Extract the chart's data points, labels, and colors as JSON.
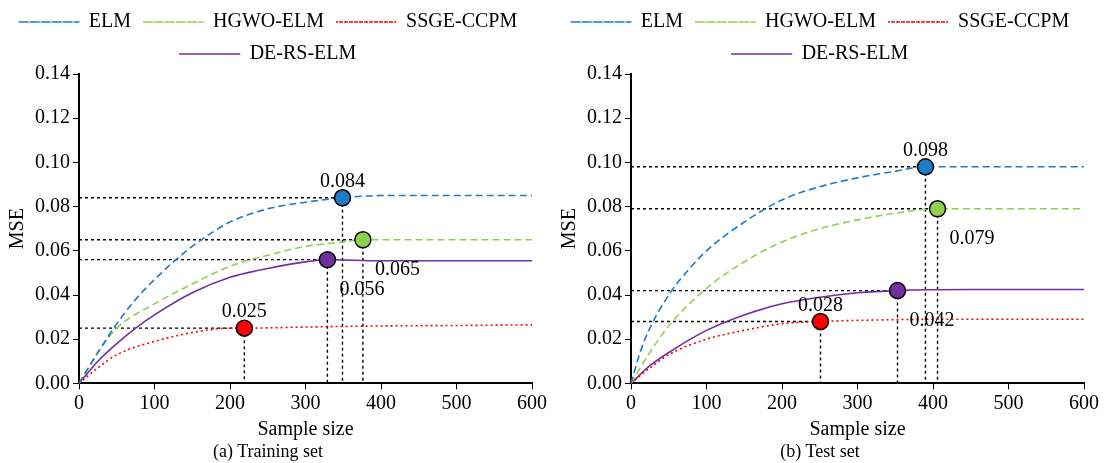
{
  "chart_data": [
    {
      "type": "line",
      "subtitle": "(a) Training set",
      "xlabel": "Sample size",
      "ylabel": "MSE",
      "xlim": [
        0,
        600
      ],
      "xticks": [
        0,
        100,
        200,
        300,
        400,
        500,
        600
      ],
      "ylim": [
        0,
        0.14
      ],
      "yticks": [
        {
          "value": 0,
          "label": "0.00"
        },
        {
          "value": 0.02,
          "label": "0.02"
        },
        {
          "value": 0.04,
          "label": "0.04"
        },
        {
          "value": 0.06,
          "label": "0.06"
        },
        {
          "value": 0.08,
          "label": "0.08"
        },
        {
          "value": 0.1,
          "label": "0.10"
        },
        {
          "value": 0.12,
          "label": "0.12"
        },
        {
          "value": 0.14,
          "label": "0.14"
        }
      ],
      "grid": false,
      "legend": "top",
      "marker": "none",
      "series": [
        {
          "name": "ELM",
          "color": "#1f7ac8",
          "line_style": "dashed",
          "x": [
            0,
            25,
            50,
            75,
            100,
            125,
            150,
            175,
            200,
            250,
            300,
            349,
            400,
            500,
            600
          ],
          "values": [
            0,
            0.014,
            0.027,
            0.038,
            0.047,
            0.055,
            0.062,
            0.068,
            0.073,
            0.079,
            0.082,
            0.084,
            0.085,
            0.085,
            0.085
          ]
        },
        {
          "name": "HGWO-ELM",
          "color": "#8fd14f",
          "line_style": "dashed",
          "x": [
            0,
            25,
            50,
            100,
            150,
            200,
            250,
            300,
            350,
            376,
            450,
            600
          ],
          "values": [
            0,
            0.014,
            0.025,
            0.036,
            0.045,
            0.053,
            0.058,
            0.062,
            0.064,
            0.065,
            0.065,
            0.065
          ]
        },
        {
          "name": "SSGE-CCPM",
          "color": "#ff0000",
          "line_style": "dotted",
          "x": [
            0,
            25,
            50,
            100,
            150,
            200,
            219,
            300,
            400,
            500,
            600
          ],
          "values": [
            0,
            0.007,
            0.013,
            0.019,
            0.023,
            0.025,
            0.025,
            0.0255,
            0.026,
            0.0262,
            0.0265
          ]
        },
        {
          "name": "DE-RS-ELM",
          "color": "#7030a0",
          "line_style": "solid",
          "x": [
            0,
            25,
            50,
            75,
            100,
            150,
            200,
            250,
            300,
            329,
            400,
            500,
            600
          ],
          "values": [
            0,
            0.01,
            0.018,
            0.025,
            0.031,
            0.041,
            0.048,
            0.052,
            0.055,
            0.056,
            0.0555,
            0.0555,
            0.0555
          ]
        },
        {
          "type": "scatter",
          "marker": "circle",
          "x": [
            219,
            329,
            349,
            376
          ],
          "values": [
            0.025,
            0.056,
            0.084,
            0.065
          ],
          "colors": [
            "#ff0000",
            "#7030a0",
            "#1f7ac8",
            "#8fd14f"
          ],
          "value_labels": [
            "0.025",
            "0.056",
            "0.084",
            "0.065"
          ]
        }
      ]
    },
    {
      "type": "line",
      "subtitle": "(b) Test set",
      "xlabel": "Sample size",
      "ylabel": "MSE",
      "xlim": [
        0,
        600
      ],
      "xticks": [
        0,
        100,
        200,
        300,
        400,
        500,
        600
      ],
      "ylim": [
        0,
        0.14
      ],
      "yticks": [
        {
          "value": 0,
          "label": "0.00"
        },
        {
          "value": 0.02,
          "label": "0.02"
        },
        {
          "value": 0.04,
          "label": "0.04"
        },
        {
          "value": 0.06,
          "label": "0.06"
        },
        {
          "value": 0.08,
          "label": "0.08"
        },
        {
          "value": 0.1,
          "label": "0.10"
        },
        {
          "value": 0.12,
          "label": "0.12"
        },
        {
          "value": 0.14,
          "label": "0.14"
        }
      ],
      "grid": false,
      "legend": "top",
      "marker": "none",
      "series": [
        {
          "name": "ELM",
          "color": "#1f7ac8",
          "line_style": "dashed",
          "x": [
            0,
            12,
            25,
            50,
            75,
            100,
            150,
            200,
            250,
            300,
            350,
            390,
            450,
            600
          ],
          "values": [
            0,
            0.014,
            0.025,
            0.04,
            0.051,
            0.06,
            0.073,
            0.083,
            0.089,
            0.093,
            0.096,
            0.098,
            0.098,
            0.098
          ]
        },
        {
          "name": "HGWO-ELM",
          "color": "#8fd14f",
          "line_style": "dashed",
          "x": [
            0,
            25,
            50,
            100,
            150,
            200,
            250,
            300,
            350,
            406,
            500,
            600
          ],
          "values": [
            0,
            0.014,
            0.026,
            0.043,
            0.055,
            0.064,
            0.07,
            0.074,
            0.077,
            0.079,
            0.079,
            0.079
          ]
        },
        {
          "name": "SSGE-CCPM",
          "color": "#ff0000",
          "line_style": "dotted",
          "x": [
            0,
            25,
            50,
            100,
            150,
            200,
            251,
            300,
            400,
            500,
            600
          ],
          "values": [
            0,
            0.007,
            0.013,
            0.02,
            0.024,
            0.027,
            0.028,
            0.0285,
            0.029,
            0.029,
            0.029
          ]
        },
        {
          "name": "DE-RS-ELM",
          "color": "#7030a0",
          "line_style": "solid",
          "x": [
            0,
            25,
            50,
            100,
            150,
            200,
            250,
            300,
            353,
            450,
            600
          ],
          "values": [
            0,
            0.008,
            0.014,
            0.024,
            0.031,
            0.036,
            0.039,
            0.041,
            0.042,
            0.0425,
            0.0425
          ]
        },
        {
          "type": "scatter",
          "marker": "circle",
          "x": [
            251,
            353,
            390,
            406
          ],
          "values": [
            0.028,
            0.042,
            0.098,
            0.079
          ],
          "colors": [
            "#ff0000",
            "#7030a0",
            "#1f7ac8",
            "#8fd14f"
          ],
          "value_labels": [
            "0.028",
            "0.042",
            "0.098",
            "0.079"
          ]
        }
      ]
    }
  ]
}
